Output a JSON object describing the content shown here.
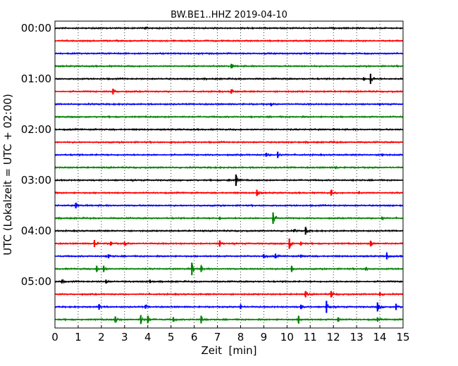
{
  "chart_data": {
    "type": "line",
    "title": "BW.BE1..HHZ 2019-04-10",
    "xlabel": "Zeit  [min]",
    "ylabel": "UTC (Lokalzeit = UTC + 02:00)",
    "xlim": [
      0,
      15
    ],
    "x_ticks": [
      "0",
      "1",
      "2",
      "3",
      "4",
      "5",
      "6",
      "7",
      "8",
      "9",
      "10",
      "11",
      "12",
      "13",
      "14",
      "15"
    ],
    "y_ticks": [
      {
        "row": 0,
        "label": "00:00"
      },
      {
        "row": 4,
        "label": "01:00"
      },
      {
        "row": 8,
        "label": "02:00"
      },
      {
        "row": 12,
        "label": "03:00"
      },
      {
        "row": 16,
        "label": "04:00"
      },
      {
        "row": 20,
        "label": "05:00"
      }
    ],
    "grid": "vertical dotted at each minute",
    "colors": [
      "#000000",
      "#ff0000",
      "#0000ff",
      "#008000"
    ],
    "rows": [
      {
        "start": "00:00",
        "events": [
          [
            3.9,
            0.2
          ]
        ]
      },
      {
        "start": "00:15",
        "events": []
      },
      {
        "start": "00:30",
        "events": []
      },
      {
        "start": "00:45",
        "events": [
          [
            7.6,
            0.35
          ]
        ]
      },
      {
        "start": "01:00",
        "events": [
          [
            13.6,
            0.8
          ],
          [
            13.3,
            0.25
          ]
        ]
      },
      {
        "start": "01:15",
        "events": [
          [
            2.5,
            0.45
          ],
          [
            7.6,
            0.35
          ]
        ]
      },
      {
        "start": "01:30",
        "events": [
          [
            9.3,
            0.2
          ]
        ]
      },
      {
        "start": "01:45",
        "events": []
      },
      {
        "start": "02:00",
        "events": []
      },
      {
        "start": "02:15",
        "events": [
          [
            5.0,
            0.15
          ],
          [
            12.0,
            0.15
          ]
        ]
      },
      {
        "start": "02:30",
        "events": [
          [
            9.1,
            0.3
          ],
          [
            9.6,
            0.5
          ],
          [
            14.1,
            0.2
          ]
        ]
      },
      {
        "start": "02:45",
        "events": [
          [
            12.1,
            0.15
          ]
        ]
      },
      {
        "start": "03:00",
        "events": [
          [
            7.8,
            0.9
          ],
          [
            7.5,
            0.2
          ]
        ]
      },
      {
        "start": "03:15",
        "events": [
          [
            8.7,
            0.5
          ],
          [
            11.9,
            0.45
          ],
          [
            13.1,
            0.2
          ]
        ]
      },
      {
        "start": "03:30",
        "events": [
          [
            0.9,
            0.45
          ]
        ]
      },
      {
        "start": "03:45",
        "events": [
          [
            7.1,
            0.25
          ],
          [
            9.4,
            0.9
          ],
          [
            14.1,
            0.25
          ]
        ]
      },
      {
        "start": "04:00",
        "events": [
          [
            10.8,
            0.6
          ],
          [
            10.3,
            0.2
          ]
        ]
      },
      {
        "start": "04:15",
        "events": [
          [
            1.7,
            0.55
          ],
          [
            2.4,
            0.3
          ],
          [
            3.0,
            0.3
          ],
          [
            7.1,
            0.5
          ],
          [
            10.1,
            0.8
          ],
          [
            10.6,
            0.3
          ],
          [
            13.6,
            0.45
          ]
        ]
      },
      {
        "start": "04:30",
        "events": [
          [
            2.3,
            0.3
          ],
          [
            9.0,
            0.35
          ],
          [
            9.5,
            0.35
          ],
          [
            10.6,
            0.25
          ],
          [
            14.3,
            0.5
          ]
        ]
      },
      {
        "start": "04:45",
        "events": [
          [
            1.8,
            0.5
          ],
          [
            2.1,
            0.5
          ],
          [
            5.9,
            1.0
          ],
          [
            6.3,
            0.5
          ],
          [
            10.2,
            0.5
          ],
          [
            13.4,
            0.25
          ]
        ]
      },
      {
        "start": "05:00",
        "events": [
          [
            0.3,
            0.3
          ],
          [
            2.2,
            0.3
          ],
          [
            4.1,
            0.25
          ]
        ]
      },
      {
        "start": "05:15",
        "events": [
          [
            10.8,
            0.5
          ],
          [
            11.9,
            0.5
          ],
          [
            14.0,
            0.3
          ]
        ]
      },
      {
        "start": "05:30",
        "events": [
          [
            1.9,
            0.45
          ],
          [
            3.9,
            0.3
          ],
          [
            8.0,
            0.35
          ],
          [
            10.6,
            0.35
          ],
          [
            11.7,
            0.95
          ],
          [
            13.9,
            0.7
          ],
          [
            14.7,
            0.5
          ]
        ]
      },
      {
        "start": "05:45",
        "events": [
          [
            2.6,
            0.5
          ],
          [
            3.7,
            0.7
          ],
          [
            4.0,
            0.6
          ],
          [
            5.1,
            0.35
          ],
          [
            6.3,
            0.6
          ],
          [
            10.5,
            0.6
          ],
          [
            12.2,
            0.35
          ],
          [
            13.9,
            0.3
          ]
        ]
      }
    ]
  }
}
